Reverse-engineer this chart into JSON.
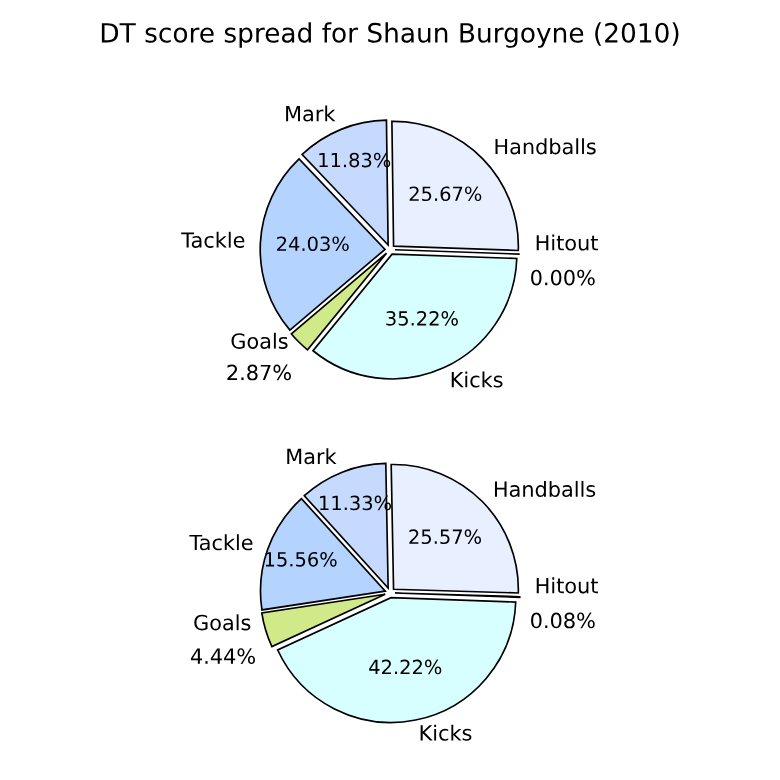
{
  "chart_data": [
    {
      "type": "pie",
      "title": "DT score spread for Shaun Burgoyne (2010)",
      "categories": [
        "Hitout",
        "Handballs",
        "Mark",
        "Tackle",
        "Goals",
        "Kicks"
      ],
      "values": [
        0.0,
        25.67,
        11.83,
        24.03,
        2.87,
        35.22
      ],
      "colors": [
        "#ffffff",
        "#e8f0ff",
        "#c6d9ff",
        "#b5d3ff",
        "#d0ea8a",
        "#d8ffff"
      ],
      "value_labels": [
        "0.00%",
        "25.67%",
        "11.83%",
        "24.03%",
        "2.87%",
        "35.22%"
      ]
    },
    {
      "type": "pie",
      "categories": [
        "Hitout",
        "Handballs",
        "Mark",
        "Tackle",
        "Goals",
        "Kicks"
      ],
      "values": [
        0.08,
        25.57,
        11.33,
        15.56,
        4.44,
        42.22
      ],
      "colors": [
        "#ffffff",
        "#e8f0ff",
        "#c6d9ff",
        "#b5d3ff",
        "#d0ea8a",
        "#d8ffff"
      ],
      "value_labels": [
        "0.08%",
        "25.57%",
        "11.33%",
        "15.56%",
        "4.44%",
        "42.22%"
      ]
    }
  ]
}
